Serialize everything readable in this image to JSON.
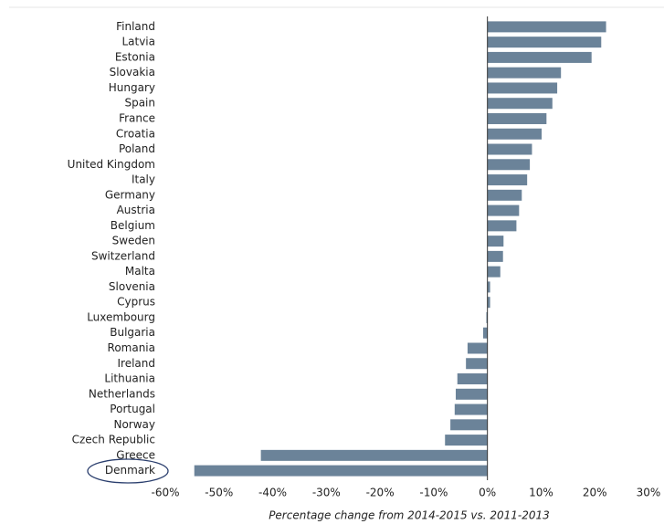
{
  "chart_data": {
    "type": "barh",
    "categories": [
      "Finland",
      "Latvia",
      "Estonia",
      "Slovakia",
      "Hungary",
      "Spain",
      "France",
      "Croatia",
      "Poland",
      "United Kingdom",
      "Italy",
      "Germany",
      "Austria",
      "Belgium",
      "Sweden",
      "Switzerland",
      "Malta",
      "Slovenia",
      "Cyprus",
      "Luxembourg",
      "Bulgaria",
      "Romania",
      "Ireland",
      "Lithuania",
      "Netherlands",
      "Portugal",
      "Norway",
      "Czech Republic",
      "Greece",
      "Denmark"
    ],
    "values": [
      22.1,
      21.2,
      19.4,
      13.7,
      13.0,
      12.1,
      11.0,
      10.1,
      8.3,
      7.9,
      7.4,
      6.4,
      5.9,
      5.4,
      3.0,
      2.9,
      2.4,
      0.5,
      0.5,
      -0.2,
      -0.8,
      -3.7,
      -4.0,
      -5.6,
      -5.9,
      -6.1,
      -6.9,
      -7.9,
      -42.2,
      -54.6
    ],
    "color": "#6b8399",
    "xlabel": "Percentage change from 2014-2015 vs. 2011-2013",
    "xlim": [
      -60,
      30
    ],
    "xticks": [
      {
        "value": -60,
        "label": "-60%"
      },
      {
        "value": -50,
        "label": "-50%"
      },
      {
        "value": -40,
        "label": "-40%"
      },
      {
        "value": -30,
        "label": "-30%"
      },
      {
        "value": -20,
        "label": "-20%"
      },
      {
        "value": -10,
        "label": "-10%"
      },
      {
        "value": 0,
        "label": "0%"
      },
      {
        "value": 10,
        "label": "10%"
      },
      {
        "value": 20,
        "label": "20%"
      },
      {
        "value": 30,
        "label": "30%"
      }
    ]
  }
}
